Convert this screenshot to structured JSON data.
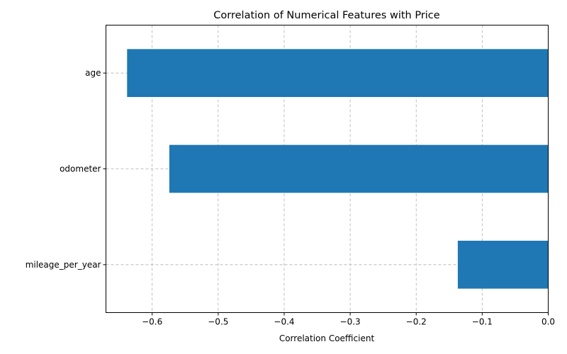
{
  "chart_data": {
    "type": "bar",
    "orientation": "horizontal",
    "title": "Correlation of Numerical Features with Price",
    "xlabel": "Correlation Coefficient",
    "ylabel": "",
    "categories": [
      "age",
      "odometer",
      "mileage_per_year"
    ],
    "values": [
      -0.638,
      -0.574,
      -0.137
    ],
    "xlim": [
      -0.67,
      0.0
    ],
    "xticks": [
      -0.6,
      -0.5,
      -0.4,
      -0.3,
      -0.2,
      -0.1,
      0.0
    ],
    "xtick_labels": [
      "−0.6",
      "−0.5",
      "−0.4",
      "−0.3",
      "−0.2",
      "−0.1",
      "0.0"
    ],
    "grid": true,
    "bar_color": "#1f77b4"
  }
}
